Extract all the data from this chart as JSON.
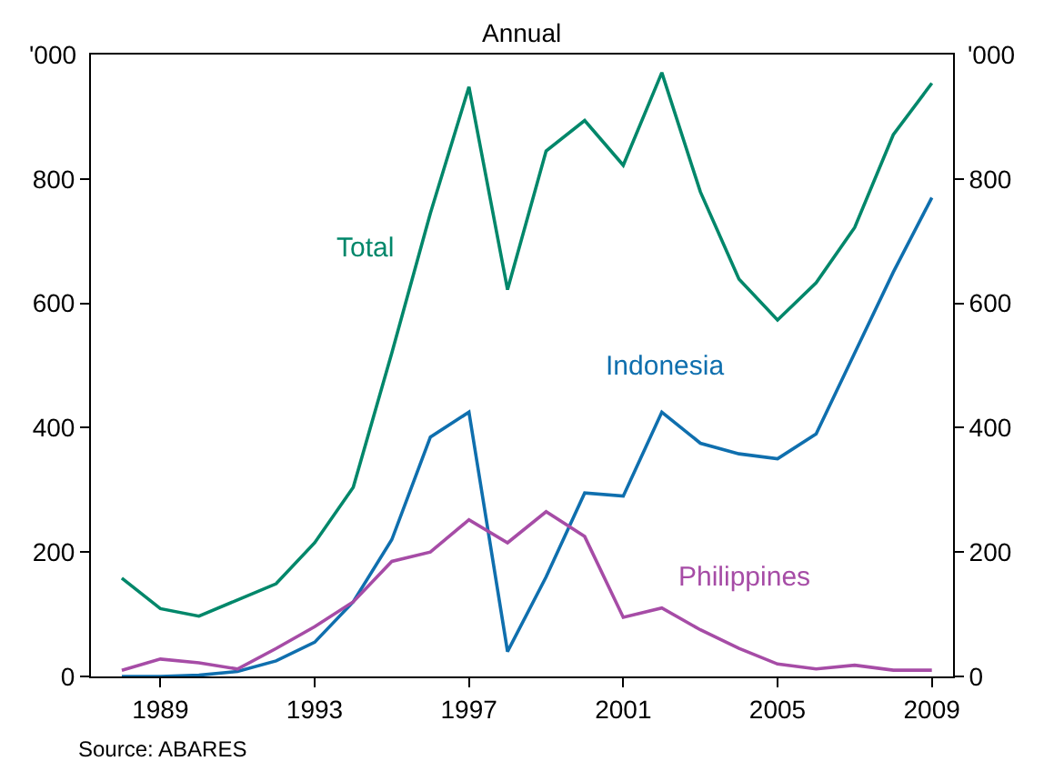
{
  "chart_data": {
    "type": "line",
    "subtitle": "Annual",
    "annotations": [
      "Source: ABARES"
    ],
    "x": [
      1988,
      1989,
      1990,
      1991,
      1992,
      1993,
      1994,
      1995,
      1996,
      1997,
      1998,
      1999,
      2000,
      2001,
      2002,
      2003,
      2004,
      2005,
      2006,
      2007,
      2008,
      2009
    ],
    "series": [
      {
        "name": "Total",
        "color": "#00876a",
        "values": [
          158,
          109,
          97,
          123,
          149,
          215,
          304,
          520,
          745,
          948,
          622,
          845,
          894,
          822,
          971,
          779,
          639,
          573,
          633,
          722,
          871,
          954
        ]
      },
      {
        "name": "Indonesia",
        "color": "#0f6fae",
        "values": [
          0,
          0,
          2,
          8,
          25,
          55,
          120,
          220,
          385,
          425,
          40,
          160,
          295,
          290,
          425,
          375,
          358,
          350,
          390,
          520,
          650,
          770
        ]
      },
      {
        "name": "Philippines",
        "color": "#a64ca6",
        "values": [
          10,
          28,
          22,
          12,
          45,
          80,
          120,
          185,
          200,
          252,
          215,
          265,
          225,
          95,
          110,
          75,
          45,
          20,
          12,
          18,
          10,
          10
        ]
      }
    ],
    "xlim": [
      1987.2,
      2009.55
    ],
    "xticks": [
      1989,
      1993,
      1997,
      2001,
      2005,
      2009
    ],
    "ylim": [
      0,
      1000
    ],
    "yticks": [
      0,
      200,
      400,
      600,
      800
    ],
    "ylabel": "'000",
    "y2lim": [
      0,
      1000
    ],
    "y2ticks": [
      0,
      200,
      400,
      600,
      800
    ],
    "y2label": "'000",
    "legend": false,
    "marker": "none",
    "line_style": "solid"
  }
}
